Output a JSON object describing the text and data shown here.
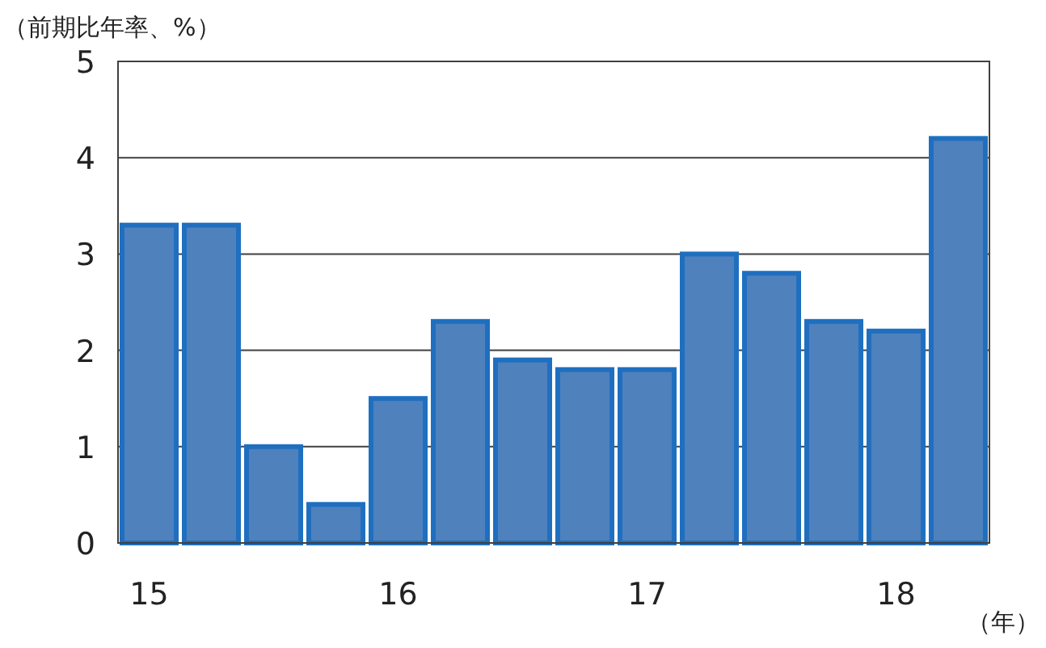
{
  "chart_data": {
    "type": "bar",
    "ylabel": "（前期比年率、%）",
    "xlabel": "（年）",
    "categories": [
      "15",
      null,
      null,
      null,
      "16",
      null,
      null,
      null,
      "17",
      null,
      null,
      null,
      "18",
      null
    ],
    "values": [
      3.3,
      3.3,
      1.0,
      0.4,
      1.5,
      2.3,
      1.9,
      1.8,
      1.8,
      3.0,
      2.8,
      2.3,
      2.2,
      4.2
    ],
    "color": "#4f81bd",
    "ylim": [
      0,
      5
    ],
    "yticks": [
      0,
      1,
      2,
      3,
      4,
      5
    ],
    "grid": "y"
  }
}
